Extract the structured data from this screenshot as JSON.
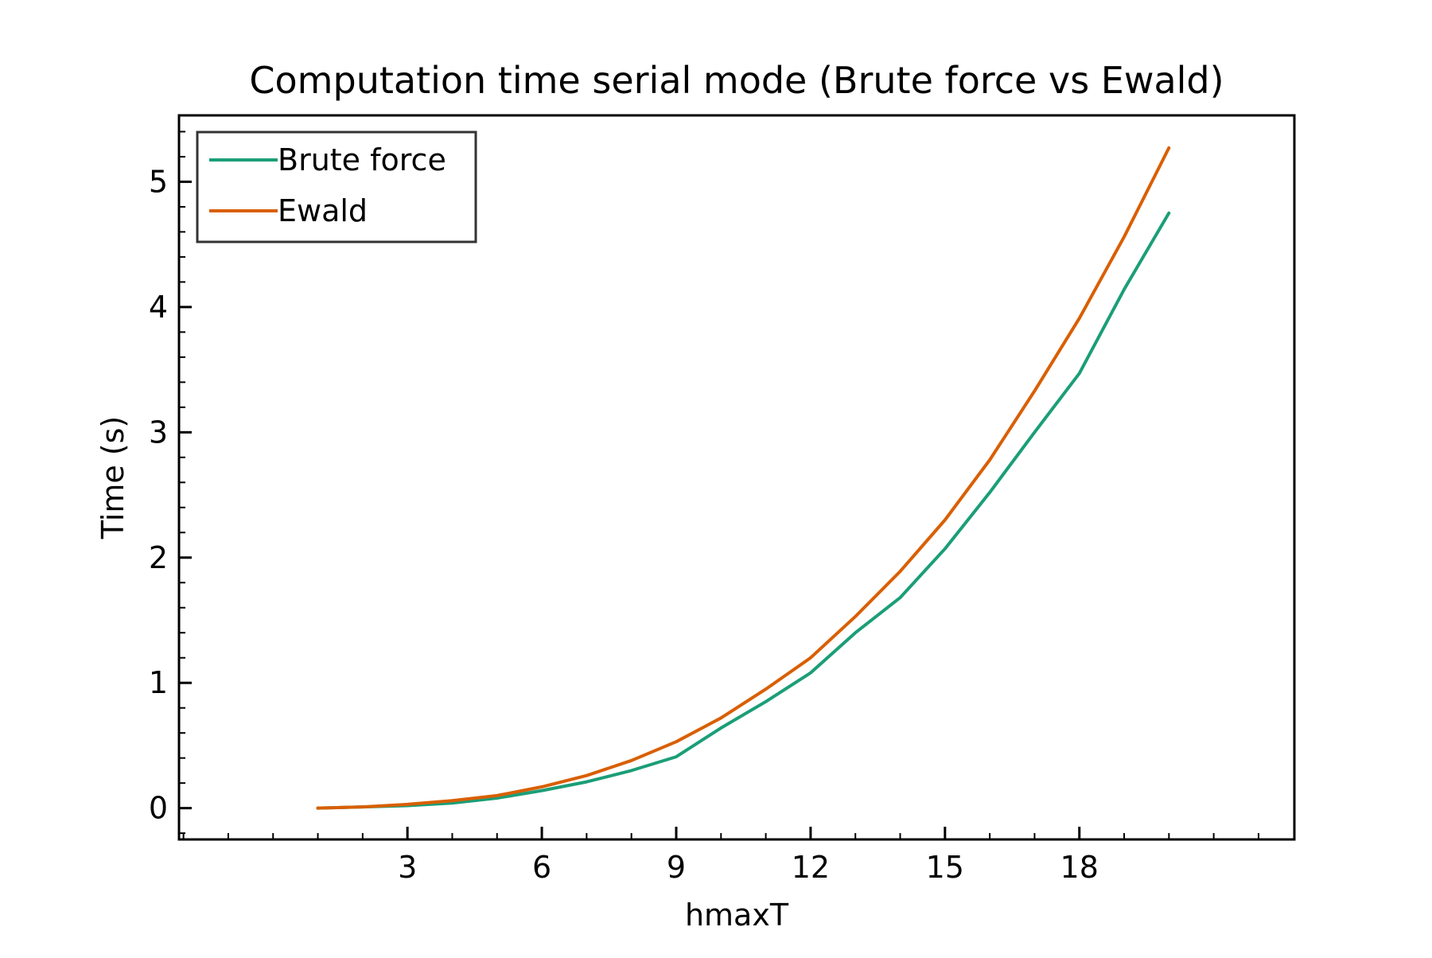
{
  "chart_data": {
    "type": "line",
    "title": "Computation time serial mode (Brute force vs Ewald)",
    "xlabel": "hmaxT",
    "ylabel": "Time (s)",
    "xlim": [
      -2.1,
      22.8
    ],
    "ylim": [
      -0.25,
      5.53
    ],
    "x_ticks": [
      3,
      6,
      9,
      12,
      15,
      18
    ],
    "x_tick_labels": [
      "3",
      "6",
      "9",
      "12",
      "15",
      "18"
    ],
    "y_ticks": [
      0,
      1,
      2,
      3,
      4,
      5
    ],
    "y_tick_labels": [
      "0",
      "1",
      "2",
      "3",
      "4",
      "5"
    ],
    "grid": false,
    "legend_position": "top-left",
    "x": [
      1,
      2,
      3,
      4,
      5,
      6,
      7,
      8,
      9,
      10,
      11,
      12,
      13,
      14,
      15,
      16,
      17,
      18,
      19,
      20
    ],
    "series": [
      {
        "name": "Brute force",
        "color": "#1b9e77",
        "values": [
          0.0,
          0.01,
          0.02,
          0.04,
          0.08,
          0.14,
          0.21,
          0.3,
          0.41,
          0.64,
          0.85,
          1.08,
          1.4,
          1.68,
          2.07,
          2.52,
          3.0,
          3.47,
          4.14,
          4.75
        ]
      },
      {
        "name": "Ewald",
        "color": "#d95f02",
        "values": [
          0.0,
          0.01,
          0.03,
          0.06,
          0.1,
          0.17,
          0.26,
          0.38,
          0.53,
          0.72,
          0.95,
          1.2,
          1.53,
          1.89,
          2.3,
          2.78,
          3.33,
          3.91,
          4.56,
          5.27
        ]
      }
    ]
  }
}
